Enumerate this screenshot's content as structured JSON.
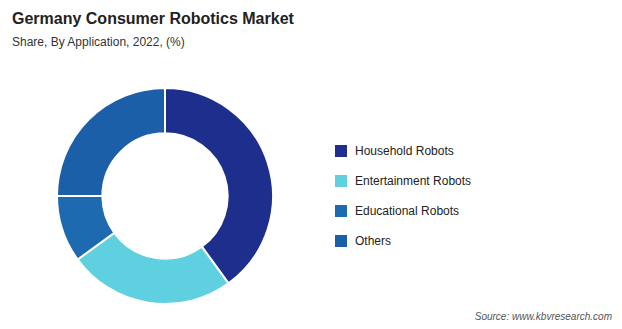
{
  "chart_data": {
    "type": "donut",
    "title": "Germany Consumer Robotics Market",
    "subtitle": "Share, By Application, 2022, (%)",
    "source": "Source: www.kbvresearch.com",
    "categories": [
      "Household Robots",
      "Entertainment Robots",
      "Educational Robots",
      "Others"
    ],
    "values": [
      40,
      25,
      10,
      25
    ],
    "colors": [
      "#1e2e8c",
      "#5fd0e0",
      "#1e6ab0",
      "#1b5fa8"
    ],
    "legend": "right"
  }
}
